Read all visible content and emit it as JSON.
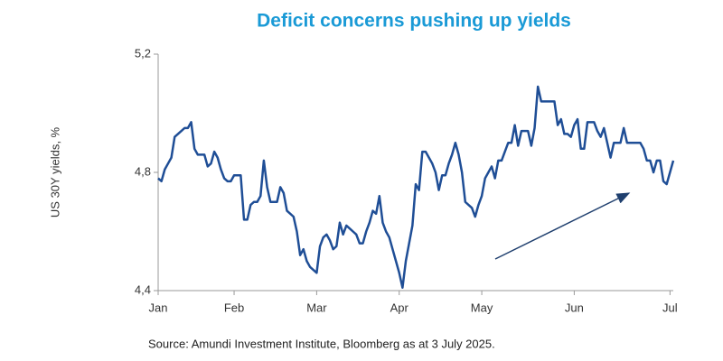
{
  "chart_data": {
    "type": "line",
    "title": "Deficit  concerns  pushing  up yields",
    "ylabel": "US 30Y yields, %",
    "source": "Source:  Amundi Investment Institute, Bloomberg  as at 3 July 2025.",
    "color": "#1f4e96",
    "ylim": [
      4.4,
      5.2
    ],
    "yticks": [
      {
        "value": 4.4,
        "label": "4,4"
      },
      {
        "value": 4.8,
        "label": "4,8"
      },
      {
        "value": 5.2,
        "label": "5,2"
      }
    ],
    "categories": [
      "Jan",
      null,
      null,
      null,
      null,
      null,
      null,
      null,
      null,
      null,
      null,
      null,
      null,
      null,
      null,
      null,
      null,
      null,
      null,
      null,
      null,
      null,
      null,
      "Feb",
      null,
      null,
      null,
      null,
      null,
      null,
      null,
      null,
      null,
      null,
      null,
      null,
      null,
      null,
      null,
      null,
      null,
      null,
      null,
      null,
      null,
      null,
      null,
      null,
      "Mar",
      null,
      null,
      null,
      null,
      null,
      null,
      null,
      null,
      null,
      null,
      null,
      null,
      null,
      null,
      null,
      null,
      null,
      null,
      null,
      null,
      null,
      null,
      null,
      null,
      "Apr",
      null,
      null,
      null,
      null,
      null,
      null,
      null,
      null,
      null,
      null,
      null,
      null,
      null,
      null,
      null,
      null,
      null,
      null,
      null,
      null,
      null,
      null,
      null,
      null,
      "May",
      null,
      null,
      null,
      null,
      null,
      null,
      null,
      null,
      null,
      null,
      null,
      null,
      null,
      null,
      null,
      null,
      null,
      null,
      null,
      null,
      null,
      null,
      null,
      null,
      null,
      null,
      null,
      "Jun",
      null,
      null,
      null,
      null,
      null,
      null,
      null,
      null,
      null,
      null,
      null,
      null,
      null,
      null,
      null,
      null,
      null,
      null,
      null,
      null,
      null,
      null,
      null,
      null,
      null,
      null,
      null,
      null,
      "Jul",
      null
    ],
    "values": [
      4.78,
      4.77,
      4.81,
      4.83,
      4.85,
      4.92,
      4.93,
      4.94,
      4.95,
      4.95,
      4.97,
      4.88,
      4.86,
      4.86,
      4.86,
      4.82,
      4.83,
      4.87,
      4.85,
      4.81,
      4.78,
      4.77,
      4.77,
      4.79,
      4.79,
      4.79,
      4.64,
      4.64,
      4.69,
      4.7,
      4.7,
      4.72,
      4.84,
      4.75,
      4.7,
      4.7,
      4.7,
      4.75,
      4.73,
      4.67,
      4.66,
      4.65,
      4.6,
      4.52,
      4.54,
      4.5,
      4.48,
      4.47,
      4.46,
      4.55,
      4.58,
      4.59,
      4.57,
      4.54,
      4.55,
      4.63,
      4.59,
      4.62,
      4.61,
      4.6,
      4.59,
      4.56,
      4.56,
      4.6,
      4.63,
      4.67,
      4.66,
      4.72,
      4.63,
      4.6,
      4.58,
      4.54,
      4.5,
      4.46,
      4.41,
      4.5,
      4.56,
      4.62,
      4.76,
      4.74,
      4.87,
      4.87,
      4.85,
      4.83,
      4.8,
      4.74,
      4.79,
      4.79,
      4.83,
      4.86,
      4.9,
      4.86,
      4.8,
      4.7,
      4.69,
      4.68,
      4.65,
      4.69,
      4.72,
      4.78,
      4.8,
      4.82,
      4.78,
      4.84,
      4.84,
      4.87,
      4.9,
      4.9,
      4.96,
      4.89,
      4.94,
      4.94,
      4.94,
      4.89,
      4.95,
      5.09,
      5.04,
      5.04,
      5.04,
      5.04,
      5.04,
      4.96,
      4.98,
      4.93,
      4.93,
      4.92,
      4.96,
      4.98,
      4.88,
      4.88,
      4.97,
      4.97,
      4.97,
      4.94,
      4.92,
      4.95,
      4.9,
      4.85,
      4.9,
      4.9,
      4.9,
      4.95,
      4.9,
      4.9,
      4.9,
      4.9,
      4.9,
      4.88,
      4.84,
      4.84,
      4.8,
      4.84,
      4.84,
      4.77,
      4.76,
      4.8,
      4.84
    ]
  }
}
